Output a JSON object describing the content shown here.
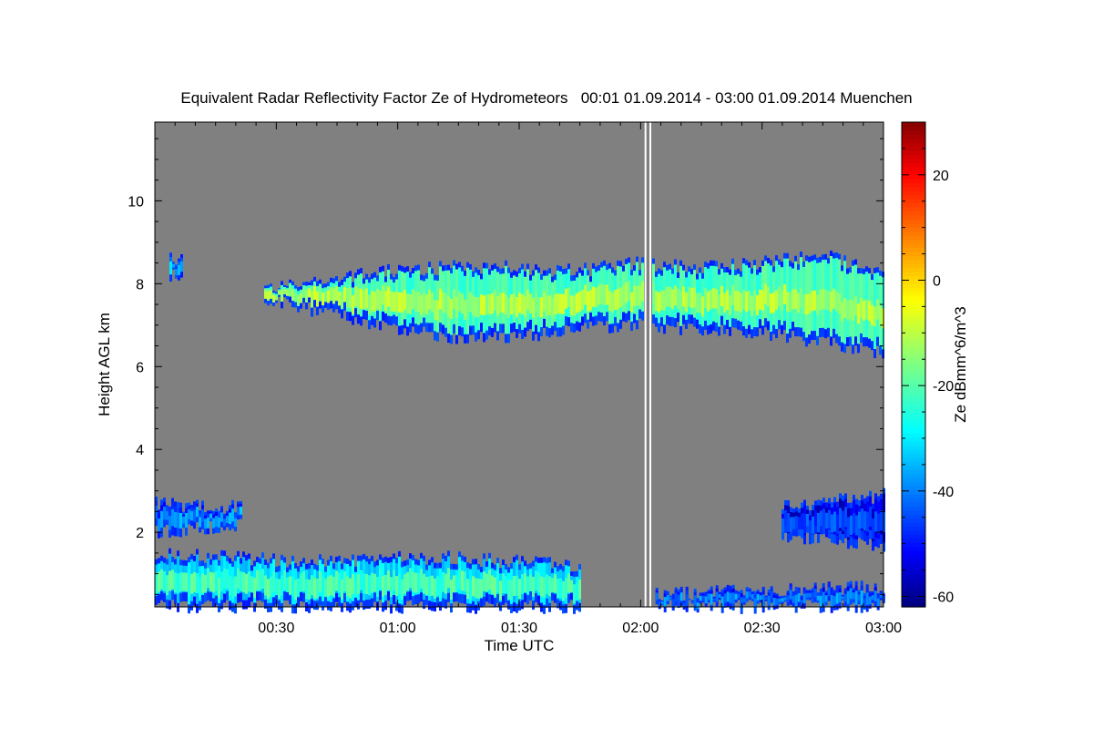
{
  "chart_data": {
    "type": "heatmap",
    "title": "Equivalent Radar Reflectivity Factor Ze of Hydrometeors   00:01 01.09.2014 - 03:00 01.09.2014 Muenchen",
    "xlabel": "Time UTC",
    "ylabel": "Height AGL km",
    "colorbar_label": "Ze dBmm^6/m^3",
    "x_ticks": [
      "00:30",
      "01:00",
      "01:30",
      "02:00",
      "02:30",
      "03:00"
    ],
    "x_tick_hours": [
      0.5,
      1.0,
      1.5,
      2.0,
      2.5,
      3.0
    ],
    "xlim_hours": [
      0.0,
      3.0
    ],
    "y_ticks": [
      2,
      4,
      6,
      8,
      10
    ],
    "ylim_km": [
      0.2,
      11.9
    ],
    "colorbar_ticks": [
      20,
      0,
      -20,
      -40,
      -60
    ],
    "colorbar_range": [
      -62,
      30
    ],
    "background_color": "#808080",
    "data_gap_hours": [
      2.02,
      2.04
    ],
    "layers": [
      {
        "name": "upper-cloud",
        "start_h": 0.45,
        "end_h": 3.0,
        "top_km": [
          7.9,
          8.1,
          8.3,
          8.4,
          8.4,
          8.3,
          8.5,
          8.4,
          8.5,
          8.7,
          8.3
        ],
        "base_km": [
          7.6,
          7.3,
          6.9,
          6.7,
          6.7,
          6.9,
          7.0,
          6.9,
          6.8,
          6.6,
          6.3
        ],
        "core_dbz": -12
      },
      {
        "name": "upper-cloud-isolated",
        "start_h": 0.06,
        "end_h": 0.11,
        "top_km": [
          8.6
        ],
        "base_km": [
          8.2
        ],
        "core_dbz": -35
      },
      {
        "name": "low-cloud-a",
        "start_h": 0.0,
        "end_h": 0.35,
        "top_km": [
          2.7,
          2.6
        ],
        "base_km": [
          2.0,
          2.2
        ],
        "core_dbz": -38
      },
      {
        "name": "low-cloud-b",
        "start_h": 2.58,
        "end_h": 3.0,
        "top_km": [
          2.6,
          2.9
        ],
        "base_km": [
          1.9,
          1.7
        ],
        "core_dbz": -45
      },
      {
        "name": "boundary-layer",
        "start_h": 0.0,
        "end_h": 1.75,
        "top_km": [
          1.5,
          1.3,
          1.4,
          1.2
        ],
        "base_km": [
          0.2,
          0.2,
          0.2,
          0.2
        ],
        "core_dbz": -22
      },
      {
        "name": "boundary-layer-late",
        "start_h": 2.05,
        "end_h": 3.0,
        "top_km": [
          0.5,
          0.6,
          0.7
        ],
        "base_km": [
          0.2,
          0.2,
          0.2
        ],
        "core_dbz": -40
      }
    ]
  }
}
